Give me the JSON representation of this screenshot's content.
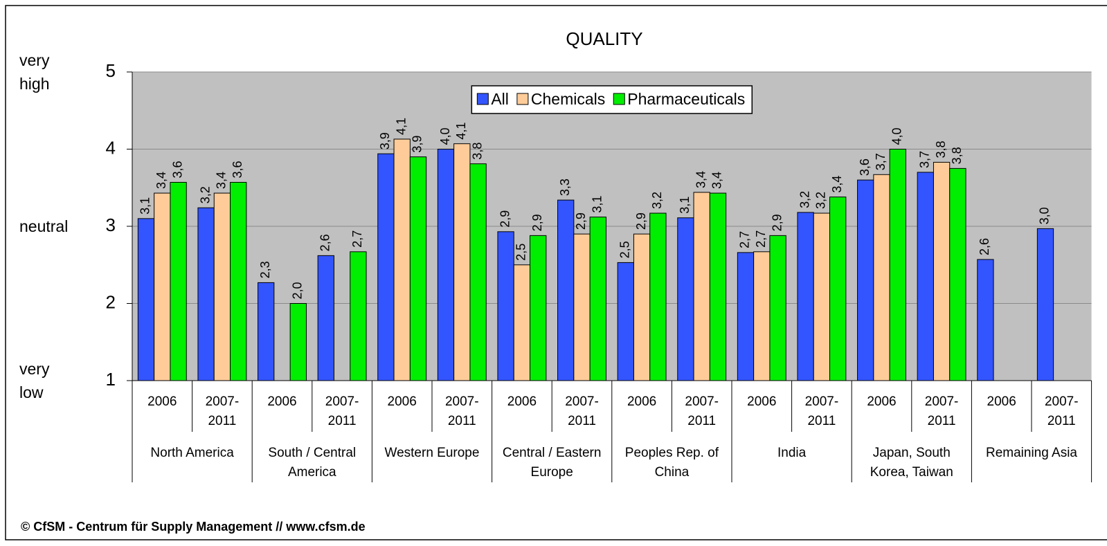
{
  "chart_data": {
    "type": "bar",
    "title": "QUALITY",
    "footer": "© CfSM - Centrum für Supply Management // www.cfsm.de",
    "categories": [
      "2006",
      "2007-2011",
      "2006",
      "2007-2011",
      "2006",
      "2007-2011",
      "2006",
      "2007-2011",
      "2006",
      "2007-2011",
      "2006",
      "2007-2011",
      "2006",
      "2007-2011",
      "2006",
      "2007-2011"
    ],
    "groups": [
      "North America",
      "South / Central America",
      "Western Europe",
      "Central / Eastern Europe",
      "Peoples Rep. of China",
      "India",
      "Japan, South Korea, Taiwan",
      "Remaining Asia"
    ],
    "series": [
      {
        "name": "All",
        "color": "#3355ff",
        "values": [
          3.1,
          3.24,
          2.27,
          2.62,
          3.94,
          4.0,
          2.93,
          3.34,
          2.53,
          3.11,
          2.66,
          3.18,
          3.6,
          3.7,
          2.57,
          2.97
        ],
        "value_labels": [
          "3,1",
          "3,2",
          "2,3",
          "2,6",
          "3,9",
          "4,0",
          "2,9",
          "3,3",
          "2,5",
          "3,1",
          "2,7",
          "3,2",
          "3,6",
          "3,7",
          "2,6",
          "3,0"
        ]
      },
      {
        "name": "Chemicals",
        "color": "#ffcc99",
        "values": [
          3.43,
          3.43,
          null,
          null,
          4.13,
          4.07,
          2.5,
          2.9,
          2.9,
          3.44,
          2.67,
          3.17,
          3.67,
          3.83,
          null,
          null
        ],
        "value_labels": [
          "3,4",
          "3,4",
          null,
          null,
          "4,1",
          "4,1",
          "2,5",
          "2,9",
          "2,9",
          "3,4",
          "2,7",
          "3,2",
          "3,7",
          "3,8",
          null,
          null
        ]
      },
      {
        "name": "Pharmaceuticals",
        "color": "#00ee00",
        "values": [
          3.57,
          3.57,
          2.0,
          2.67,
          3.9,
          3.81,
          2.88,
          3.12,
          3.17,
          3.43,
          2.88,
          3.38,
          4.0,
          3.75,
          null,
          null
        ],
        "value_labels": [
          "3,6",
          "3,6",
          "2,0",
          "2,7",
          "3,9",
          "3,8",
          "2,9",
          "3,1",
          "3,2",
          "3,4",
          "2,9",
          "3,4",
          "4,0",
          "3,8",
          null,
          null
        ]
      }
    ],
    "ylim": [
      1,
      5
    ],
    "yticks": [
      1,
      2,
      3,
      4,
      5
    ],
    "y_labels": [
      {
        "value": 5,
        "label": "very high"
      },
      {
        "value": 3,
        "label": "neutral"
      },
      {
        "value": 1,
        "label": "very low"
      }
    ],
    "grid": true,
    "legend": "top"
  }
}
